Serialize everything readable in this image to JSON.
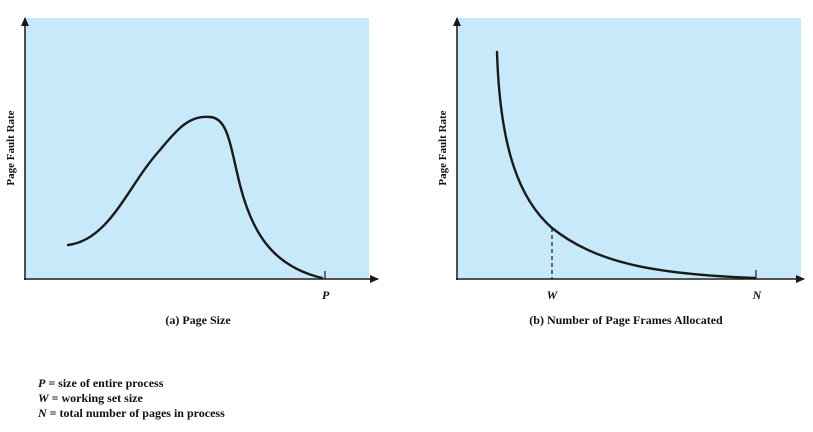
{
  "panel_a": {
    "ylabel": "Page Fault Rate",
    "caption": "(a) Page Size",
    "x_tick": "P"
  },
  "panel_b": {
    "ylabel": "Page Fault Rate",
    "caption": "(b) Number of Page Frames Allocated",
    "x_ticks": [
      "W",
      "N"
    ]
  },
  "colors": {
    "plot_bg": "#c7e9f9",
    "curve": "#1a1a1a"
  },
  "legend": [
    {
      "symbol": "P",
      "text": " = size of entire process"
    },
    {
      "symbol": "W",
      "text": " = working set size"
    },
    {
      "symbol": "N",
      "text": " = total number of pages in process"
    }
  ]
}
